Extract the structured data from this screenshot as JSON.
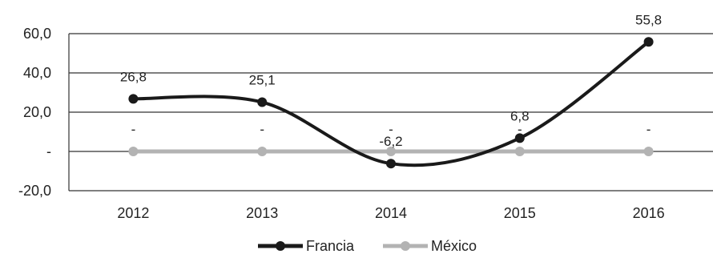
{
  "chart_data": {
    "type": "line",
    "categories": [
      "2012",
      "2013",
      "2014",
      "2015",
      "2016"
    ],
    "series": [
      {
        "name": "Francia",
        "values": [
          26.8,
          25.1,
          -6.2,
          6.8,
          55.8
        ],
        "labels": [
          "26,8",
          "25,1",
          "-6,2",
          "6,8",
          "55,8"
        ],
        "color": "#1a1a1a",
        "smooth": true
      },
      {
        "name": "México",
        "values": [
          0,
          0,
          0,
          0,
          0
        ],
        "labels": [
          "-",
          "-",
          "-",
          "-",
          "-"
        ],
        "color": "#b3b3b3",
        "smooth": false
      }
    ],
    "y_ticks": [
      {
        "value": 60,
        "label": "60,0"
      },
      {
        "value": 40,
        "label": "40,0"
      },
      {
        "value": 20,
        "label": "20,0"
      },
      {
        "value": 0,
        "label": "-"
      },
      {
        "value": -20,
        "label": "-20,0"
      }
    ],
    "ylim": [
      -20,
      60
    ],
    "grid": "horizontal",
    "legend_position": "bottom"
  }
}
